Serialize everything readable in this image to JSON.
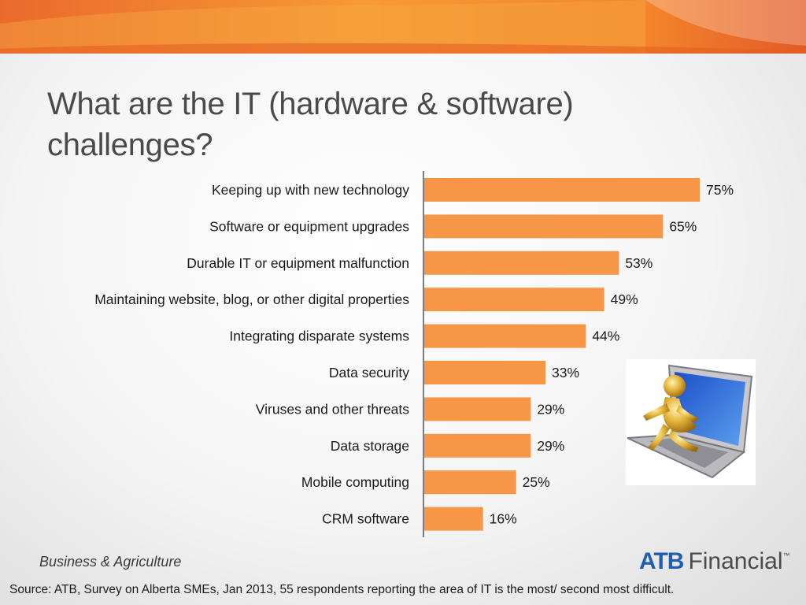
{
  "title": "What are the IT (hardware & software) challenges?",
  "colors": {
    "bar": "#f79646",
    "banner_dark": "#e8622a",
    "banner_light": "#f7a23a",
    "axis": "#555555",
    "logo_blue": "#1f5fb0"
  },
  "chart_data": {
    "type": "bar",
    "orientation": "horizontal",
    "categories": [
      "Keeping up with new technology",
      "Software or equipment upgrades",
      "Durable IT or equipment malfunction",
      "Maintaining website, blog, or other digital properties",
      "Integrating disparate systems",
      "Data security",
      "Viruses and other threats",
      "Data storage",
      "Mobile computing",
      "CRM software"
    ],
    "values": [
      75,
      65,
      53,
      49,
      44,
      33,
      29,
      29,
      25,
      16
    ],
    "value_labels": [
      "75%",
      "65%",
      "53%",
      "49%",
      "44%",
      "33%",
      "29%",
      "29%",
      "25%",
      "16%"
    ],
    "xlim": [
      0,
      100
    ],
    "grid": false,
    "legend": "none"
  },
  "footer": {
    "division": "Business & Agriculture",
    "source": "Source:  ATB, Survey on Alberta SMEs, Jan 2013, 55 respondents reporting the area of IT  is the most/ second most difficult."
  },
  "logo": {
    "mark": "ATB",
    "word": "Financial",
    "tm": "™"
  },
  "illustration": {
    "icon": "laptop-figure-icon"
  }
}
